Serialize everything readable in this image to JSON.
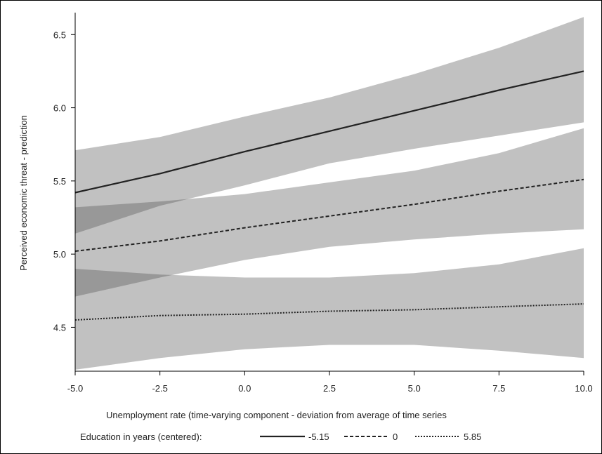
{
  "chart_data": {
    "type": "line",
    "xlabel": "Unemployment rate (time-varying component - deviation from average of time series",
    "ylabel": "Perceived economic threat - prediction",
    "xlim": [
      -5.0,
      10.0
    ],
    "ylim": [
      4.2,
      6.65
    ],
    "xticks": [
      -5.0,
      -2.5,
      0.0,
      2.5,
      5.0,
      7.5,
      10.0
    ],
    "xtick_labels": [
      "-5.0",
      "-2.5",
      "0.0",
      "2.5",
      "5.0",
      "7.5",
      "10.0"
    ],
    "yticks": [
      4.5,
      5.0,
      5.5,
      6.0,
      6.5
    ],
    "ytick_labels": [
      "4.5",
      "5.0",
      "5.5",
      "6.0",
      "6.5"
    ],
    "grid": false,
    "legend_position": "bottom",
    "legend_title": "Education in years (centered):",
    "series": [
      {
        "name": "-5.15",
        "line_style": "solid",
        "x": [
          -5,
          -2.5,
          0,
          2.5,
          5,
          7.5,
          10
        ],
        "y": [
          5.42,
          5.55,
          5.7,
          5.84,
          5.98,
          6.12,
          6.25
        ],
        "lower": [
          5.14,
          5.33,
          5.47,
          5.62,
          5.72,
          5.81,
          5.9
        ],
        "upper": [
          5.71,
          5.8,
          5.94,
          6.07,
          6.23,
          6.41,
          6.62
        ]
      },
      {
        "name": "0",
        "line_style": "dashed",
        "x": [
          -5,
          -2.5,
          0,
          2.5,
          5,
          7.5,
          10
        ],
        "y": [
          5.02,
          5.09,
          5.18,
          5.26,
          5.34,
          5.43,
          5.51
        ],
        "lower": [
          4.71,
          4.84,
          4.96,
          5.05,
          5.1,
          5.14,
          5.17
        ],
        "upper": [
          5.32,
          5.36,
          5.41,
          5.49,
          5.57,
          5.69,
          5.86
        ]
      },
      {
        "name": "5.85",
        "line_style": "dotted",
        "x": [
          -5,
          -2.5,
          0,
          2.5,
          5,
          7.5,
          10
        ],
        "y": [
          4.55,
          4.58,
          4.59,
          4.61,
          4.62,
          4.64,
          4.66
        ],
        "lower": [
          4.21,
          4.29,
          4.35,
          4.38,
          4.38,
          4.34,
          4.29
        ],
        "upper": [
          4.9,
          4.86,
          4.84,
          4.84,
          4.87,
          4.93,
          5.04
        ]
      }
    ]
  }
}
